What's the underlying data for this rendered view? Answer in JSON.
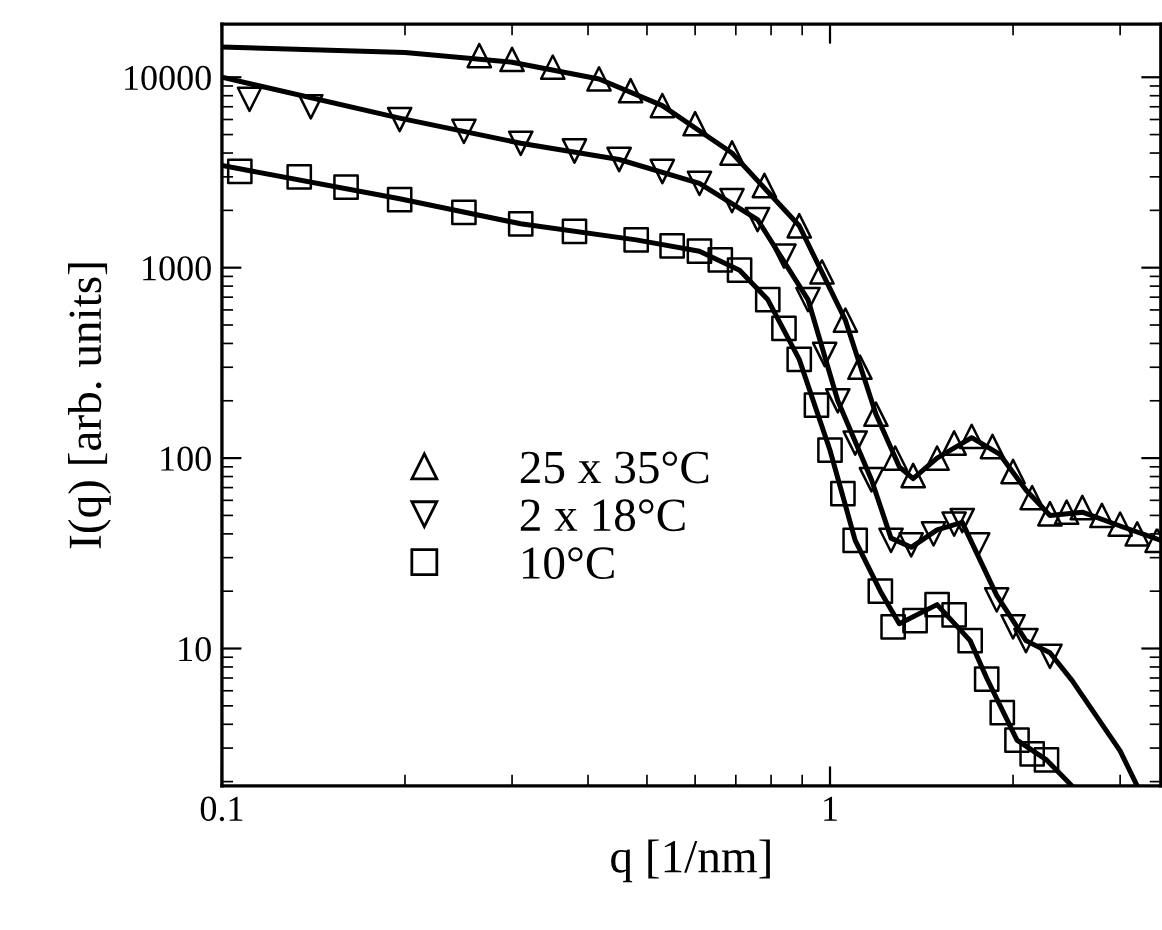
{
  "chart_data": {
    "type": "scatter",
    "xlabel": "q [1/nm]",
    "ylabel": "I(q) [arb. units]",
    "log": "xy",
    "xlim": [
      0.1,
      3.5
    ],
    "ylim": [
      1.9,
      19000
    ],
    "xticks": [
      0.1,
      1
    ],
    "yticks": [
      10,
      100,
      1000,
      10000
    ],
    "grid": false,
    "legend": "left",
    "series": [
      {
        "name": "25 x 35°C",
        "marker": "triangle",
        "color": "#000000",
        "x": [
          0.265,
          0.3,
          0.35,
          0.417,
          0.47,
          0.53,
          0.6,
          0.69,
          0.78,
          0.89,
          0.97,
          1.06,
          1.12,
          1.19,
          1.28,
          1.37,
          1.5,
          1.6,
          1.71,
          1.85,
          2.0,
          2.15,
          2.3,
          2.45,
          2.6,
          2.8,
          3.0,
          3.2,
          3.45
        ],
        "values": [
          13000,
          12400,
          11300,
          9800,
          8500,
          7100,
          5700,
          4000,
          2700,
          1660,
          950,
          530,
          300,
          170,
          100,
          81,
          100,
          120,
          130,
          115,
          85,
          62,
          51,
          52,
          55,
          50,
          45,
          40,
          37
        ]
      },
      {
        "name": "2 x 18°C",
        "marker": "triangle_down",
        "color": "#000000",
        "x": [
          0.111,
          0.14,
          0.196,
          0.25,
          0.31,
          0.38,
          0.45,
          0.53,
          0.61,
          0.69,
          0.76,
          0.84,
          0.92,
          0.98,
          1.03,
          1.1,
          1.17,
          1.26,
          1.36,
          1.48,
          1.6,
          1.65,
          1.75,
          1.88,
          2.0,
          2.1,
          2.3
        ],
        "values": [
          7660,
          7000,
          6000,
          5200,
          4500,
          4100,
          3700,
          3200,
          2770,
          2250,
          1790,
          1150,
          680,
          350,
          200,
          120,
          77,
          37,
          35,
          40,
          45,
          47,
          35,
          18,
          13,
          11,
          9.1
        ]
      },
      {
        "name": "10°C",
        "marker": "square",
        "color": "#000000",
        "x": [
          0.107,
          0.134,
          0.16,
          0.196,
          0.25,
          0.31,
          0.38,
          0.48,
          0.55,
          0.61,
          0.66,
          0.71,
          0.79,
          0.84,
          0.89,
          0.95,
          1.0,
          1.05,
          1.1,
          1.21,
          1.27,
          1.38,
          1.5,
          1.6,
          1.7,
          1.81,
          1.92,
          2.03,
          2.15,
          2.27
        ],
        "values": [
          3200,
          3000,
          2650,
          2280,
          1950,
          1700,
          1550,
          1400,
          1300,
          1220,
          1100,
          970,
          680,
          480,
          330,
          190,
          110,
          65,
          37,
          20,
          13,
          14,
          17,
          15,
          11,
          6.9,
          4.6,
          3.3,
          2.8,
          2.6
        ]
      },
      {
        "type": "line",
        "marker": "none",
        "line_style": "solid",
        "color": "#000000",
        "x": [
          0.1,
          0.2,
          0.3,
          0.417,
          0.53,
          0.69,
          0.89,
          1.06,
          1.19,
          1.3,
          1.37,
          1.5,
          1.71,
          1.9,
          2.1,
          2.3,
          2.6,
          3.0,
          3.5
        ],
        "values": [
          14400,
          13500,
          12000,
          9800,
          7100,
          4000,
          1660,
          530,
          170,
          90,
          78,
          100,
          128,
          105,
          68,
          50,
          52,
          44,
          37
        ]
      },
      {
        "type": "line",
        "marker": "none",
        "line_style": "solid",
        "color": "#000000",
        "x": [
          0.1,
          0.196,
          0.31,
          0.45,
          0.61,
          0.76,
          0.92,
          1.03,
          1.17,
          1.26,
          1.36,
          1.5,
          1.65,
          1.88,
          2.1,
          2.3,
          2.5,
          3.0,
          3.2
        ],
        "values": [
          10000,
          6100,
          4500,
          3700,
          2770,
          1790,
          680,
          200,
          77,
          38,
          34,
          42,
          46,
          19,
          11,
          9.5,
          6.8,
          2.9,
          1.9
        ]
      },
      {
        "type": "line",
        "marker": "none",
        "line_style": "solid",
        "color": "#000000",
        "x": [
          0.1,
          0.196,
          0.31,
          0.48,
          0.61,
          0.71,
          0.79,
          0.89,
          1.0,
          1.1,
          1.21,
          1.3,
          1.5,
          1.7,
          1.81,
          2.03,
          2.27,
          2.5
        ],
        "values": [
          3440,
          2300,
          1700,
          1400,
          1220,
          970,
          680,
          330,
          110,
          37,
          20,
          13.5,
          17,
          11,
          7.0,
          3.3,
          2.6,
          1.9
        ]
      }
    ]
  }
}
